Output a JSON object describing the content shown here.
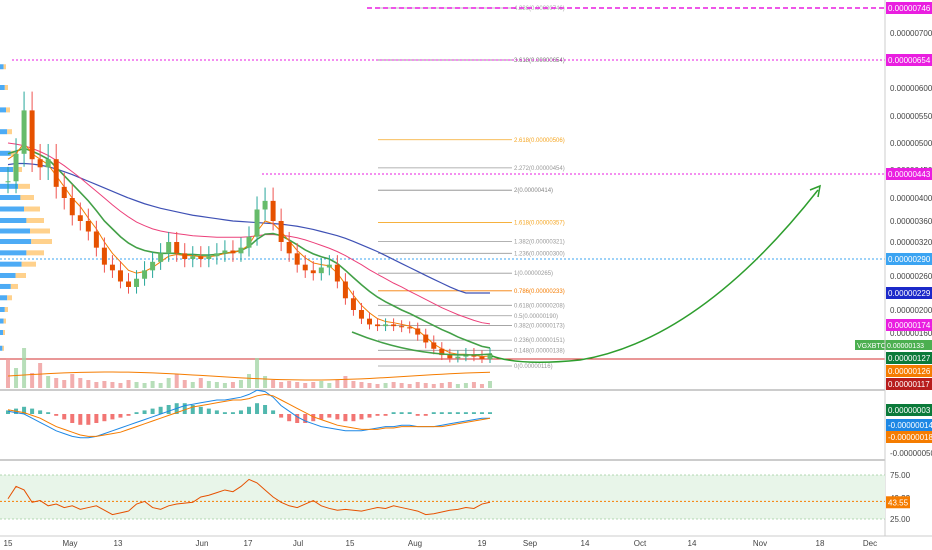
{
  "chart_data": {
    "type": "candlestick",
    "symbol_tag": "VGXBTC",
    "last_price_label": "0.00000133",
    "price_axis": {
      "ticks": [
        "0.00000700",
        "0.00000600",
        "0.00000550",
        "0.00000500",
        "0.00000450",
        "0.00000400",
        "0.00000360",
        "0.00000320",
        "0.00000260",
        "0.00000200",
        "0.00000160"
      ],
      "tick_values": [
        700,
        600,
        550,
        500,
        450,
        400,
        360,
        320,
        260,
        200,
        160
      ]
    },
    "price_badges": [
      {
        "label": "0.00000746",
        "value": 746,
        "color": "#e91ee0"
      },
      {
        "label": "0.00000654",
        "value": 654,
        "color": "#e91ee0"
      },
      {
        "label": "0.00000443",
        "value": 443,
        "color": "#e91ee0"
      },
      {
        "label": "0.00000290",
        "value": 290,
        "color": "#3ba4f2"
      },
      {
        "label": "0.00000229",
        "value": 229,
        "color": "#1b29c9"
      },
      {
        "label": "0.00000174",
        "value": 174,
        "color": "#e91ee0"
      },
      {
        "label": "0.00000127",
        "value": 127,
        "color": "#0b7a3a"
      },
      {
        "label": "0.00000126",
        "value": 126,
        "color": "#f57c00"
      },
      {
        "label": "0.00000117",
        "value": 117,
        "color": "#b71c1c"
      }
    ],
    "horizontal_lines": [
      {
        "name": "line-746",
        "value": 746,
        "color": "#e91ee0",
        "dash": "5,3",
        "width": 1.5
      },
      {
        "name": "line-654",
        "value": 654,
        "color": "#e91ee0",
        "dash": "2,2",
        "width": 1
      },
      {
        "name": "line-443",
        "value": 443,
        "color": "#e91ee0",
        "dash": "2,2",
        "width": 1
      },
      {
        "name": "line-290",
        "value": 290,
        "color": "#3ba4f2",
        "dash": "2,2",
        "width": 1
      },
      {
        "name": "line-127",
        "value": 127,
        "color": "#d32f2f",
        "dash": "",
        "width": 1
      }
    ],
    "fib_levels": [
      {
        "label": "4.236(0.00000746)",
        "value": 746,
        "color": "#aaaaaa"
      },
      {
        "label": "3.618(0.00000654)",
        "value": 654,
        "color": "#777777"
      },
      {
        "label": "2.618(0.00000506)",
        "value": 506,
        "color": "#f5a623"
      },
      {
        "label": "2.272(0.00000454)",
        "value": 454,
        "color": "#999999"
      },
      {
        "label": "2(0.00000414)",
        "value": 414,
        "color": "#888888"
      },
      {
        "label": "1.618(0.00000357)",
        "value": 357,
        "color": "#f5a623"
      },
      {
        "label": "1.382(0.00000321)",
        "value": 321,
        "color": "#999999"
      },
      {
        "label": "1.236(0.00000300)",
        "value": 300,
        "color": "#999999"
      },
      {
        "label": "1(0.00000265)",
        "value": 265,
        "color": "#999999"
      },
      {
        "label": "0.786(0.00000233)",
        "value": 233,
        "color": "#f57c00"
      },
      {
        "label": "0.618(0.00000208)",
        "value": 208,
        "color": "#999999"
      },
      {
        "label": "0.5(0.00000190)",
        "value": 190,
        "color": "#999999"
      },
      {
        "label": "0.382(0.00000173)",
        "value": 173,
        "color": "#999999"
      },
      {
        "label": "0.236(0.00000151)",
        "value": 151,
        "color": "#999999"
      },
      {
        "label": "0.148(0.00000138)",
        "value": 138,
        "color": "#999999"
      },
      {
        "label": "0(0.00000116)",
        "value": 116,
        "color": "#999999"
      }
    ],
    "x_axis_labels": [
      "15",
      "May",
      "13",
      "Jun",
      "17",
      "Jul",
      "15",
      "Aug",
      "19",
      "Sep",
      "14",
      "Oct",
      "14",
      "Nov",
      "18",
      "Dec"
    ],
    "price_series": [
      {
        "t": 0,
        "v": 430
      },
      {
        "t": 1,
        "v": 480
      },
      {
        "t": 2,
        "v": 560
      },
      {
        "t": 3,
        "v": 470
      },
      {
        "t": 4,
        "v": 455
      },
      {
        "t": 5,
        "v": 470
      },
      {
        "t": 6,
        "v": 420
      },
      {
        "t": 7,
        "v": 400
      },
      {
        "t": 8,
        "v": 370
      },
      {
        "t": 9,
        "v": 360
      },
      {
        "t": 10,
        "v": 340
      },
      {
        "t": 11,
        "v": 310
      },
      {
        "t": 12,
        "v": 280
      },
      {
        "t": 13,
        "v": 270
      },
      {
        "t": 14,
        "v": 250
      },
      {
        "t": 15,
        "v": 240
      },
      {
        "t": 16,
        "v": 255
      },
      {
        "t": 17,
        "v": 270
      },
      {
        "t": 18,
        "v": 285
      },
      {
        "t": 19,
        "v": 300
      },
      {
        "t": 20,
        "v": 320
      },
      {
        "t": 21,
        "v": 300
      },
      {
        "t": 22,
        "v": 290
      },
      {
        "t": 23,
        "v": 295
      },
      {
        "t": 24,
        "v": 290
      },
      {
        "t": 25,
        "v": 295
      },
      {
        "t": 26,
        "v": 300
      },
      {
        "t": 27,
        "v": 305
      },
      {
        "t": 28,
        "v": 300
      },
      {
        "t": 29,
        "v": 310
      },
      {
        "t": 30,
        "v": 330
      },
      {
        "t": 31,
        "v": 380
      },
      {
        "t": 32,
        "v": 395
      },
      {
        "t": 33,
        "v": 360
      },
      {
        "t": 34,
        "v": 320
      },
      {
        "t": 35,
        "v": 300
      },
      {
        "t": 36,
        "v": 280
      },
      {
        "t": 37,
        "v": 270
      },
      {
        "t": 38,
        "v": 265
      },
      {
        "t": 39,
        "v": 275
      },
      {
        "t": 40,
        "v": 280
      },
      {
        "t": 41,
        "v": 250
      },
      {
        "t": 42,
        "v": 220
      },
      {
        "t": 43,
        "v": 200
      },
      {
        "t": 44,
        "v": 185
      },
      {
        "t": 45,
        "v": 175
      },
      {
        "t": 46,
        "v": 172
      },
      {
        "t": 47,
        "v": 175
      },
      {
        "t": 48,
        "v": 172
      },
      {
        "t": 49,
        "v": 170
      },
      {
        "t": 50,
        "v": 168
      },
      {
        "t": 51,
        "v": 158
      },
      {
        "t": 52,
        "v": 148
      },
      {
        "t": 53,
        "v": 140
      },
      {
        "t": 54,
        "v": 132
      },
      {
        "t": 55,
        "v": 128
      },
      {
        "t": 56,
        "v": 130
      },
      {
        "t": 57,
        "v": 133
      },
      {
        "t": 58,
        "v": 130
      },
      {
        "t": 59,
        "v": 127
      },
      {
        "t": 60,
        "v": 133
      }
    ],
    "ema_fast": [
      470,
      480,
      500,
      480,
      470,
      460,
      440,
      420,
      400,
      385,
      365,
      345,
      320,
      300,
      285,
      270,
      265,
      268,
      275,
      285,
      295,
      298,
      296,
      296,
      294,
      294,
      296,
      300,
      302,
      305,
      315,
      340,
      360,
      355,
      340,
      322,
      305,
      292,
      283,
      280,
      278,
      265,
      245,
      225,
      208,
      195,
      185,
      180,
      178,
      175,
      172,
      165,
      155,
      146,
      140,
      135,
      133,
      133,
      132,
      130,
      131
    ],
    "ema_mid": [
      480,
      485,
      490,
      485,
      478,
      470,
      455,
      440,
      425,
      410,
      395,
      378,
      360,
      345,
      330,
      318,
      310,
      305,
      302,
      300,
      300,
      300,
      298,
      298,
      297,
      297,
      298,
      300,
      302,
      305,
      312,
      325,
      335,
      336,
      332,
      324,
      315,
      306,
      299,
      294,
      290,
      282,
      270,
      257,
      244,
      232,
      222,
      214,
      207,
      200,
      194,
      187,
      180,
      173,
      166,
      160,
      155,
      151,
      147,
      143,
      141
    ],
    "ma_pink": [
      500,
      498,
      495,
      490,
      484,
      477,
      468,
      458,
      447,
      436,
      424,
      412,
      400,
      388,
      377,
      367,
      358,
      351,
      345,
      341,
      338,
      336,
      334,
      332,
      331,
      330,
      329,
      329,
      329,
      329,
      330,
      332,
      334,
      334,
      333,
      331,
      328,
      324,
      319,
      314,
      309,
      303,
      296,
      288,
      280,
      271,
      263,
      255,
      247,
      240,
      232,
      225,
      218,
      211,
      204,
      198,
      192,
      187,
      182,
      178,
      176
    ],
    "ma_blue": [
      460,
      462,
      462,
      461,
      459,
      456,
      452,
      447,
      442,
      436,
      430,
      424,
      418,
      412,
      406,
      400,
      395,
      390,
      386,
      382,
      379,
      376,
      373,
      370,
      368,
      366,
      364,
      362,
      360,
      359,
      358,
      357,
      356,
      355,
      354,
      352,
      350,
      347,
      344,
      340,
      336,
      332,
      327,
      321,
      315,
      309,
      303,
      296,
      289,
      282,
      275,
      268,
      261,
      254,
      247,
      240,
      234,
      229,
      229,
      229,
      229
    ],
    "projection_arc": "green curved arrow projecting price from base near 0.00000127 upward toward 0.00000443 by October",
    "macd_panel": {
      "ticks": [
        "0.00000003",
        "-0.00000014",
        "-0.00000018",
        "-0.00000050"
      ],
      "badges": [
        {
          "label": "0.00000003",
          "color": "#0b7a3a"
        },
        {
          "label": "-0.00000014",
          "color": "#1e88e5"
        },
        {
          "label": "-0.00000018",
          "color": "#f57c00"
        }
      ],
      "tick_plain": "-0.00000050",
      "histogram": [
        2,
        3,
        4,
        3,
        2,
        1,
        -1,
        -3,
        -5,
        -6,
        -6,
        -5,
        -4,
        -3,
        -2,
        -1,
        1,
        2,
        3,
        4,
        5,
        6,
        6,
        5,
        4,
        3,
        2,
        1,
        1,
        2,
        4,
        6,
        5,
        2,
        -2,
        -4,
        -5,
        -5,
        -4,
        -3,
        -2,
        -3,
        -4,
        -4,
        -3,
        -2,
        -1,
        -1,
        1,
        1,
        1,
        -1,
        -1,
        1,
        1,
        1,
        1,
        1,
        1,
        1,
        1
      ],
      "macd_line": [
        2,
        1,
        0,
        -3,
        -6,
        -9,
        -12,
        -14,
        -16,
        -17,
        -17,
        -16,
        -14,
        -12,
        -10,
        -8,
        -6,
        -4,
        -2,
        0,
        2,
        4,
        6,
        7,
        8,
        9,
        10,
        10,
        11,
        12,
        14,
        17,
        16,
        12,
        6,
        2,
        -2,
        -5,
        -7,
        -9,
        -10,
        -11,
        -12,
        -12,
        -12,
        -11,
        -10,
        -9,
        -9,
        -8,
        -8,
        -9,
        -9,
        -9,
        -8,
        -7,
        -6,
        -5,
        -4,
        -3,
        -3
      ],
      "signal_line": [
        3,
        2,
        1,
        -1,
        -3,
        -6,
        -9,
        -11,
        -13,
        -15,
        -16,
        -16,
        -15,
        -14,
        -13,
        -11,
        -9,
        -7,
        -5,
        -3,
        -1,
        1,
        3,
        5,
        6,
        7,
        8,
        9,
        10,
        10,
        11,
        13,
        14,
        13,
        10,
        7,
        4,
        1,
        -2,
        -4,
        -6,
        -8,
        -9,
        -10,
        -11,
        -11,
        -11,
        -10,
        -10,
        -9,
        -9,
        -9,
        -9,
        -9,
        -9,
        -8,
        -7,
        -6,
        -5,
        -4,
        -3
      ]
    },
    "rsi_panel": {
      "ticks": [
        "75.00",
        "25.00"
      ],
      "value_label": "43.55",
      "value_color": "#f57c00",
      "top_label": "49.23",
      "rsi": [
        48,
        62,
        58,
        44,
        46,
        40,
        42,
        38,
        40,
        36,
        38,
        40,
        35,
        30,
        32,
        34,
        42,
        45,
        38,
        36,
        40,
        42,
        43,
        44,
        50,
        52,
        55,
        58,
        56,
        62,
        70,
        66,
        58,
        50,
        44,
        40,
        38,
        42,
        46,
        40,
        37,
        35,
        36,
        35,
        34,
        36,
        38,
        37,
        40,
        38,
        36,
        34,
        30,
        31,
        33,
        35,
        36,
        38,
        37,
        42,
        44
      ]
    }
  }
}
